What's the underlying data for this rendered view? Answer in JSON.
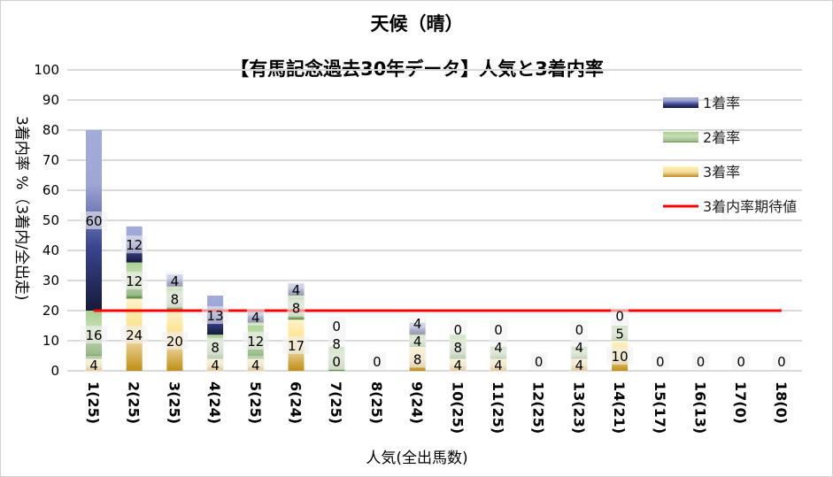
{
  "chart_data": {
    "type": "bar",
    "stacked": true,
    "title": "天候（晴）",
    "subtitle": "【有馬記念過去30年データ】人気と3着内率",
    "xlabel": "人気(全出馬数)",
    "ylabel": "3着内率 %（3着内/全出走)",
    "ylim": [
      0,
      100
    ],
    "yticks": [
      0,
      10,
      20,
      30,
      40,
      50,
      60,
      70,
      80,
      90,
      100
    ],
    "grid": true,
    "legend_position": "right",
    "categories": [
      "1(25)",
      "2(25)",
      "3(25)",
      "4(24)",
      "5(25)",
      "6(24)",
      "7(25)",
      "8(25)",
      "9(24)",
      "10(25)",
      "11(25)",
      "12(25)",
      "13(23)",
      "14(21)",
      "15(17)",
      "16(13)",
      "17(0)",
      "18(0)"
    ],
    "series": [
      {
        "name": "3着率",
        "color": "#c8961a",
        "values": [
          4,
          24,
          20,
          4,
          4,
          17,
          0,
          0,
          8,
          4,
          4,
          0,
          4,
          10,
          0,
          0,
          0,
          0
        ]
      },
      {
        "name": "2着率",
        "color": "#5a8a3c",
        "values": [
          16,
          12,
          8,
          8,
          12,
          8,
          8,
          0,
          4,
          8,
          4,
          0,
          4,
          5,
          0,
          0,
          0,
          0
        ]
      },
      {
        "name": "1着率",
        "color": "#2a3278",
        "values": [
          60,
          12,
          4,
          13,
          4,
          4,
          0,
          0,
          4,
          0,
          0,
          0,
          0,
          0,
          0,
          0,
          0,
          0
        ]
      }
    ],
    "reference_line": {
      "name": "3着内率期待値",
      "value": 20,
      "color": "#ff0000"
    }
  }
}
